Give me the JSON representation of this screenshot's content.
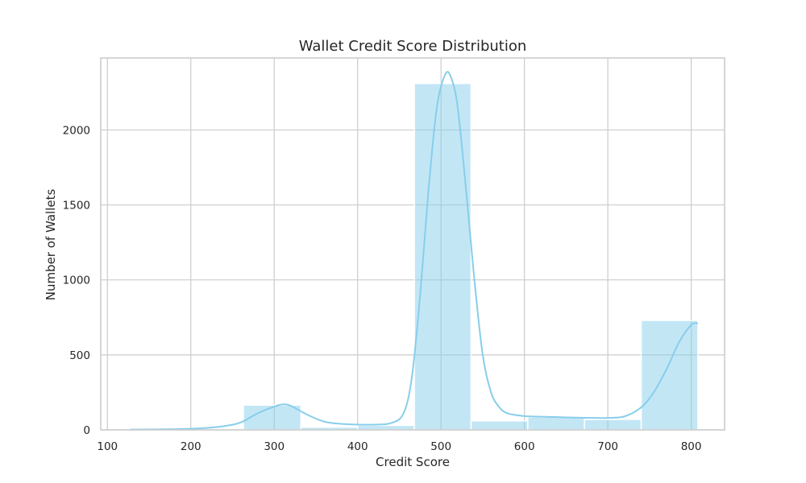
{
  "chart_data": {
    "type": "bar",
    "title": "Wallet Credit Score Distribution",
    "xlabel": "Credit Score",
    "ylabel": "Number of Wallets",
    "xlim": [
      92,
      840
    ],
    "ylim": [
      0,
      2480
    ],
    "xticks": [
      100,
      200,
      300,
      400,
      500,
      600,
      700,
      800
    ],
    "yticks": [
      0,
      500,
      1000,
      1500,
      2000
    ],
    "grid": true,
    "bar_color": "#87ceeb",
    "bar_opacity": 0.5,
    "kde_color": "#87ceeb",
    "bins": [
      {
        "x0": 127,
        "x1": 195,
        "count": 8
      },
      {
        "x0": 195,
        "x1": 263,
        "count": 0
      },
      {
        "x0": 263,
        "x1": 332,
        "count": 165
      },
      {
        "x0": 332,
        "x1": 400,
        "count": 18
      },
      {
        "x0": 400,
        "x1": 468,
        "count": 30
      },
      {
        "x0": 468,
        "x1": 536,
        "count": 2310
      },
      {
        "x0": 536,
        "x1": 604,
        "count": 60
      },
      {
        "x0": 604,
        "x1": 672,
        "count": 85
      },
      {
        "x0": 672,
        "x1": 740,
        "count": 70
      },
      {
        "x0": 740,
        "x1": 808,
        "count": 730
      }
    ],
    "kde": {
      "x": [
        127,
        150,
        180,
        210,
        240,
        260,
        280,
        300,
        310,
        320,
        340,
        360,
        380,
        400,
        420,
        440,
        455,
        465,
        475,
        485,
        495,
        505,
        512,
        520,
        530,
        540,
        550,
        560,
        570,
        580,
        600,
        620,
        640,
        660,
        680,
        700,
        720,
        740,
        755,
        770,
        785,
        800,
        808
      ],
      "y": [
        2,
        3,
        5,
        10,
        25,
        50,
        110,
        155,
        170,
        160,
        100,
        55,
        40,
        35,
        35,
        45,
        110,
        350,
        900,
        1600,
        2150,
        2370,
        2350,
        2150,
        1600,
        1000,
        500,
        250,
        150,
        110,
        92,
        88,
        85,
        82,
        80,
        80,
        90,
        150,
        250,
        400,
        580,
        700,
        710
      ]
    }
  }
}
